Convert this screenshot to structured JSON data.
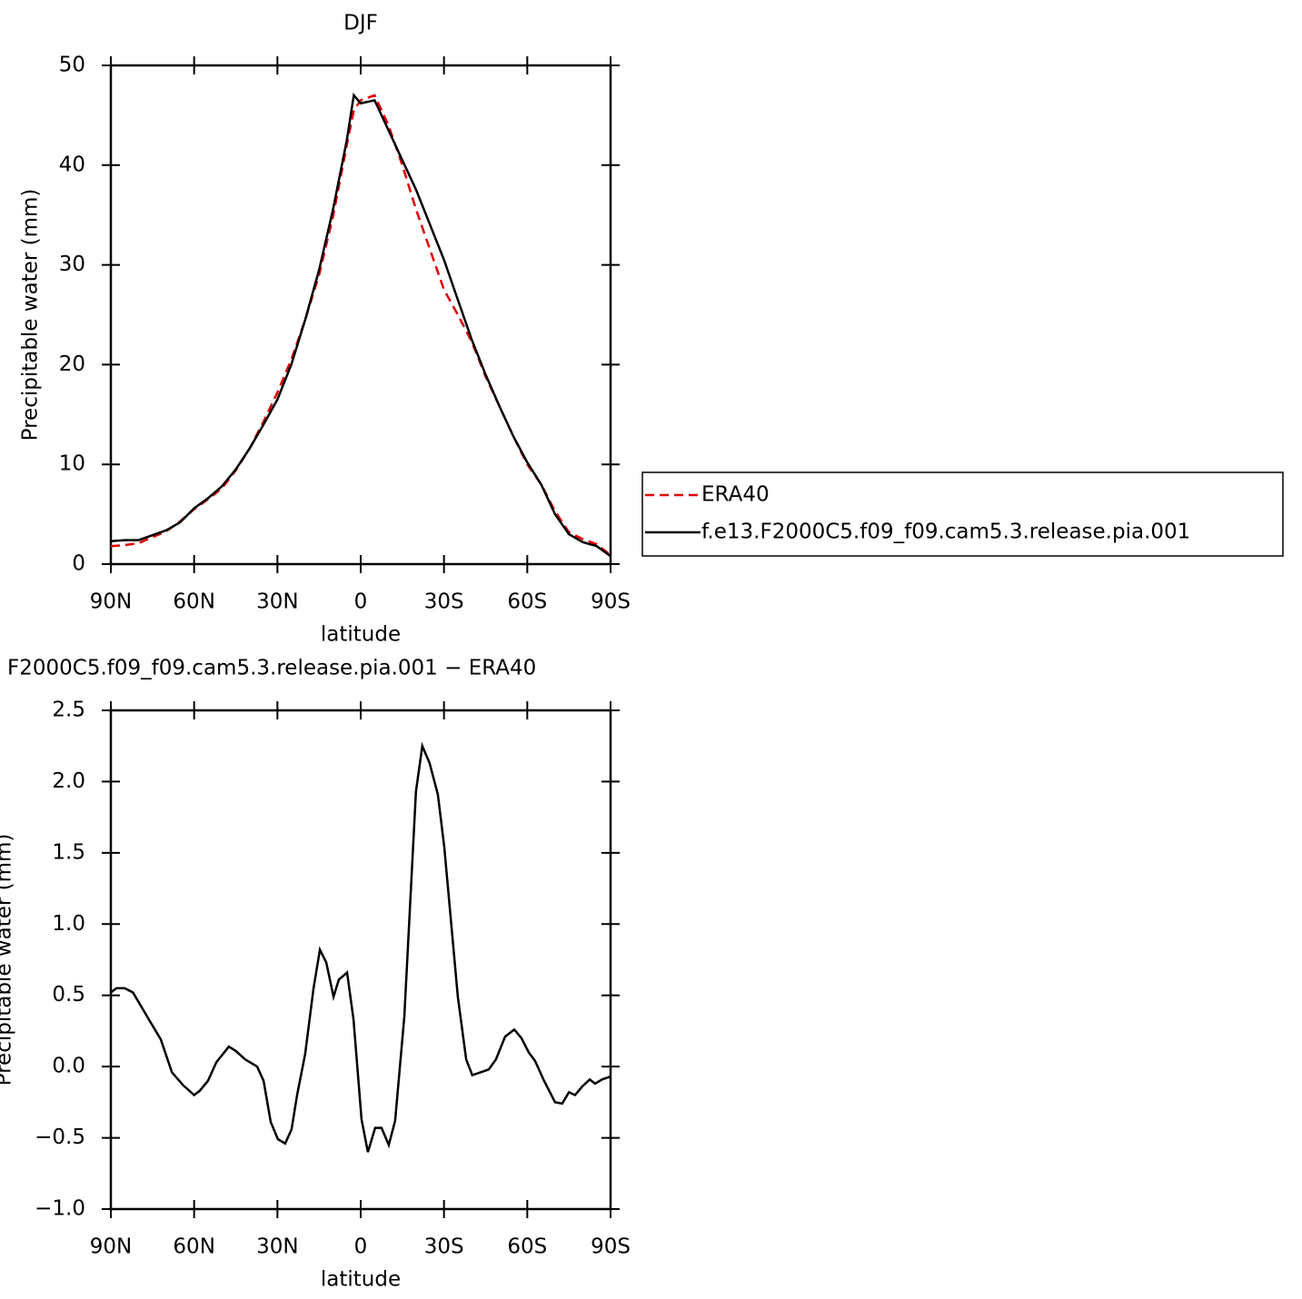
{
  "chart_data": [
    {
      "type": "line",
      "title": "DJF",
      "xlabel": "latitude",
      "ylabel": "Precipitable water (mm)",
      "x": [
        90,
        85,
        80,
        75,
        70,
        65,
        60,
        55,
        50,
        45,
        40,
        35,
        30,
        25,
        20,
        15,
        10,
        5,
        2.5,
        0,
        -5,
        -10,
        -15,
        -20,
        -25,
        -30,
        -35,
        -40,
        -45,
        -50,
        -55,
        -60,
        -65,
        -70,
        -75,
        -80,
        -85,
        -90
      ],
      "xlim": [
        90,
        -90
      ],
      "xticks": [
        {
          "value": 90,
          "label": "90N"
        },
        {
          "value": 60,
          "label": "60N"
        },
        {
          "value": 30,
          "label": "30N"
        },
        0,
        {
          "value": -30,
          "label": "30S"
        },
        {
          "value": -60,
          "label": "60S"
        },
        {
          "value": -90,
          "label": "90S"
        }
      ],
      "ylim": [
        0,
        50
      ],
      "yticks": [
        0,
        10,
        20,
        30,
        40,
        50
      ],
      "legend": "right",
      "series": [
        {
          "name": "ERA40",
          "color": "#e00000",
          "dashed": true,
          "values": [
            1.8,
            1.9,
            2.1,
            2.7,
            3.3,
            4.3,
            5.5,
            6.5,
            7.6,
            9.4,
            11.6,
            14.3,
            17.2,
            20.5,
            24.5,
            29.0,
            34.8,
            42.0,
            45.5,
            46.5,
            47.0,
            44.0,
            40.0,
            35.5,
            31.5,
            27.5,
            25.0,
            22.3,
            18.8,
            15.8,
            12.8,
            10.0,
            8.0,
            5.3,
            3.2,
            2.5,
            2.0,
            0.9
          ]
        },
        {
          "name": "f.e13.F2000C5.f09_f09.cam5.3.release.pia.001",
          "color": "#000000",
          "dashed": false,
          "values": [
            2.3,
            2.4,
            2.4,
            2.9,
            3.4,
            4.2,
            5.6,
            6.6,
            7.8,
            9.5,
            11.6,
            14.0,
            16.5,
            20.0,
            24.5,
            29.5,
            35.5,
            42.5,
            47.0,
            46.2,
            46.5,
            43.5,
            40.5,
            37.5,
            34.0,
            30.5,
            26.5,
            22.5,
            19.0,
            15.8,
            12.8,
            10.2,
            8.0,
            5.0,
            3.0,
            2.2,
            1.8,
            0.8
          ]
        }
      ]
    },
    {
      "type": "line",
      "title": "F2000C5.f09_f09.cam5.3.release.pia.001 − ERA40",
      "xlabel": "latitude",
      "ylabel": "Precipitable water (mm)",
      "x": [
        90,
        88,
        85,
        82,
        79,
        76,
        72,
        68,
        64,
        60,
        58,
        55,
        52,
        47.5,
        45,
        41.6,
        37.3,
        35,
        32.4,
        29.8,
        27.2,
        24.9,
        22.9,
        20,
        17,
        14.7,
        12.4,
        9.8,
        7.9,
        4.9,
        2.6,
        -0.3,
        -2.6,
        -5.2,
        -7.5,
        -10.1,
        -12.4,
        -15.7,
        -19.9,
        -22.2,
        -24.8,
        -27.8,
        -30.1,
        -35,
        -38,
        -40.2,
        -43.2,
        -46.1,
        -48.7,
        -52,
        -55.3,
        -57.9,
        -60.5,
        -62.8,
        -65.8,
        -70,
        -72.6,
        -75,
        -77.2,
        -79.8,
        -82.5,
        -84.4,
        -87,
        -90
      ],
      "values": [
        0.52,
        0.55,
        0.55,
        0.52,
        0.42,
        0.32,
        0.19,
        -0.04,
        -0.13,
        -0.2,
        -0.17,
        -0.1,
        0.03,
        0.14,
        0.11,
        0.05,
        0.0,
        -0.1,
        -0.39,
        -0.51,
        -0.54,
        -0.44,
        -0.2,
        0.09,
        0.55,
        0.82,
        0.73,
        0.49,
        0.61,
        0.66,
        0.33,
        -0.37,
        -0.6,
        -0.43,
        -0.43,
        -0.55,
        -0.38,
        0.35,
        1.93,
        2.25,
        2.13,
        1.91,
        1.54,
        0.49,
        0.05,
        -0.06,
        -0.04,
        -0.02,
        0.05,
        0.21,
        0.26,
        0.2,
        0.1,
        0.04,
        -0.09,
        -0.25,
        -0.26,
        -0.18,
        -0.2,
        -0.14,
        -0.09,
        -0.12,
        -0.09,
        -0.07
      ],
      "color": "#000000",
      "xlim": [
        90,
        -90
      ],
      "xticks": [
        {
          "value": 90,
          "label": "90N"
        },
        {
          "value": 60,
          "label": "60N"
        },
        {
          "value": 30,
          "label": "30N"
        },
        0,
        {
          "value": -30,
          "label": "30S"
        },
        {
          "value": -60,
          "label": "60S"
        },
        {
          "value": -90,
          "label": "90S"
        }
      ],
      "ylim": [
        -1,
        2.5
      ],
      "yticks": [
        {
          "value": -1,
          "label": "−1.0"
        },
        {
          "value": -0.5,
          "label": "−0.5"
        },
        {
          "value": 0,
          "label": "0.0"
        },
        0.5,
        {
          "value": 1,
          "label": "1.0"
        },
        1.5,
        {
          "value": 2,
          "label": "2.0"
        },
        2.5
      ]
    }
  ]
}
